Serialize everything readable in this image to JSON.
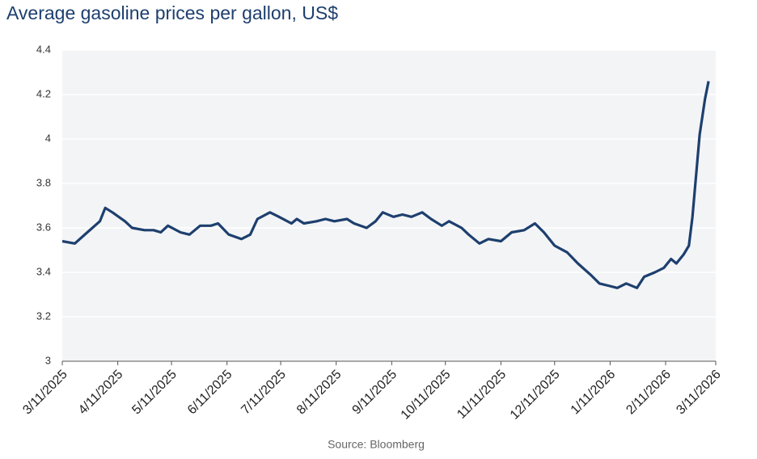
{
  "chart_data": {
    "type": "line",
    "title": "Average gasoline prices per gallon, US$",
    "source": "Source: Bloomberg",
    "x": [
      "3/11/2025",
      "3/18/2025",
      "3/25/2025",
      "4/1/2025",
      "4/4/2025",
      "4/8/2025",
      "4/15/2025",
      "4/19/2025",
      "4/26/2025",
      "5/1/2025",
      "5/5/2025",
      "5/9/2025",
      "5/16/2025",
      "5/21/2025",
      "5/27/2025",
      "6/2/2025",
      "6/6/2025",
      "6/12/2025",
      "6/19/2025",
      "6/24/2025",
      "6/28/2025",
      "7/5/2025",
      "7/10/2025",
      "7/17/2025",
      "7/20/2025",
      "7/24/2025",
      "7/31/2025",
      "8/5/2025",
      "8/10/2025",
      "8/17/2025",
      "8/21/2025",
      "8/28/2025",
      "9/2/2025",
      "9/6/2025",
      "9/12/2025",
      "9/17/2025",
      "9/22/2025",
      "9/28/2025",
      "10/3/2025",
      "10/9/2025",
      "10/13/2025",
      "10/20/2025",
      "10/24/2025",
      "10/30/2025",
      "11/4/2025",
      "11/11/2025",
      "11/17/2025",
      "11/24/2025",
      "11/30/2025",
      "12/5/2025",
      "12/11/2025",
      "12/18/2025",
      "12/24/2025",
      "12/31/2025",
      "1/5/2026",
      "1/10/2026",
      "1/15/2026",
      "1/20/2026",
      "1/26/2026",
      "1/30/2026",
      "2/5/2026",
      "2/10/2026",
      "2/14/2026",
      "2/17/2026",
      "2/21/2026",
      "2/24/2026",
      "2/26/2026",
      "3/2/2026",
      "3/5/2026",
      "3/7/2026"
    ],
    "series": [
      {
        "name": "Average gasoline price",
        "color": "#1d3f6e",
        "values": [
          3.54,
          3.53,
          3.58,
          3.63,
          3.69,
          3.67,
          3.63,
          3.6,
          3.59,
          3.59,
          3.58,
          3.61,
          3.58,
          3.57,
          3.61,
          3.61,
          3.62,
          3.57,
          3.55,
          3.57,
          3.64,
          3.67,
          3.65,
          3.62,
          3.64,
          3.62,
          3.63,
          3.64,
          3.63,
          3.64,
          3.62,
          3.6,
          3.63,
          3.67,
          3.65,
          3.66,
          3.65,
          3.67,
          3.64,
          3.61,
          3.63,
          3.6,
          3.57,
          3.53,
          3.55,
          3.54,
          3.58,
          3.59,
          3.62,
          3.58,
          3.52,
          3.49,
          3.44,
          3.39,
          3.35,
          3.34,
          3.33,
          3.35,
          3.33,
          3.38,
          3.4,
          3.42,
          3.46,
          3.44,
          3.48,
          3.52,
          3.65,
          4.02,
          4.18,
          4.26
        ]
      }
    ],
    "xlim": [
      "3/11/2025",
      "3/11/2026"
    ],
    "xticks": [
      "3/11/2025",
      "4/11/2025",
      "5/11/2025",
      "6/11/2025",
      "7/11/2025",
      "8/11/2025",
      "9/11/2025",
      "10/11/2025",
      "11/11/2025",
      "12/11/2025",
      "1/11/2026",
      "2/11/2026",
      "3/11/2026"
    ],
    "ylim": [
      3,
      4.4
    ],
    "yticks": [
      3,
      3.2,
      3.4,
      3.6,
      3.8,
      4,
      4.2,
      4.4
    ],
    "grid": true
  }
}
